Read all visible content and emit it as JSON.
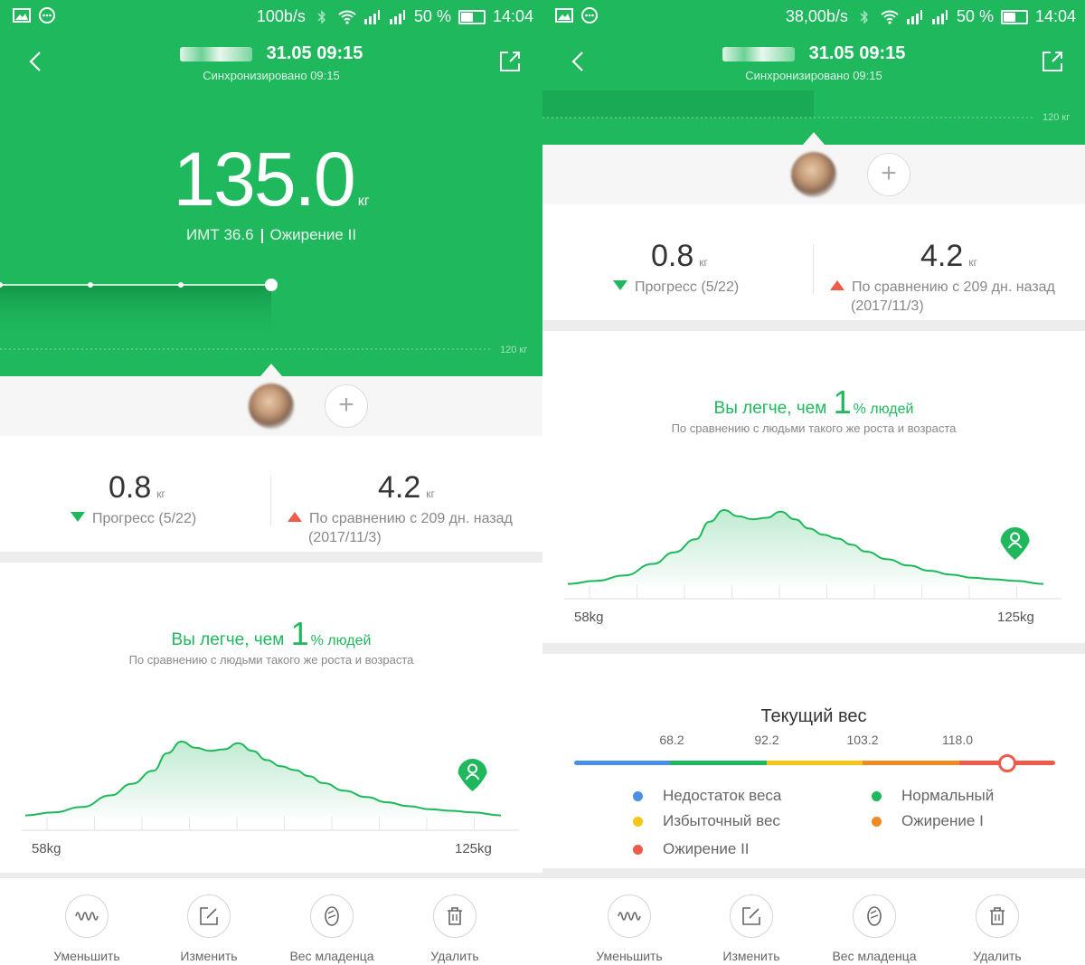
{
  "status_left": {
    "speed": "100b/s",
    "signal_pct": "50 %",
    "time": "14:04"
  },
  "status_right": {
    "speed": "38,00b/s",
    "signal_pct": "50 %",
    "time": "14:04"
  },
  "header": {
    "datetime": "31.05 09:15",
    "synced": "Синхронизировано 09:15"
  },
  "hero": {
    "weight": "135.0",
    "unit": "кг",
    "bmi": "ИМТ 36.6",
    "category": "Ожирение II",
    "ref_line_label": "120 кг"
  },
  "stats": {
    "progress_value": "0.8",
    "progress_unit": "кг",
    "progress_label": "Прогресс (5/22)",
    "compare_value": "4.2",
    "compare_unit": "кг",
    "compare_label_1": "По сравнению с 209 дн. назад",
    "compare_label_2": "(2017/11/3)"
  },
  "distribution": {
    "title_before": "Вы легче, чем",
    "percent": "1",
    "title_after": "% людей",
    "subtitle": "По сравнению с людьми такого же роста и возраста",
    "axis_min": "58kg",
    "axis_max": "125kg"
  },
  "chart_data": {
    "type": "area",
    "title": "Вы легче, чем 1 % людей",
    "xlabel": "",
    "ylabel": "",
    "x_range": [
      58,
      125
    ],
    "x": [
      58,
      62,
      66,
      70,
      73,
      76,
      78,
      80,
      82,
      84,
      86,
      88,
      90,
      92,
      94,
      96,
      98,
      100,
      103,
      106,
      109,
      112,
      115,
      118,
      121,
      125
    ],
    "series": [
      {
        "values": [
          4,
          8,
          15,
          30,
          45,
          62,
          85,
          100,
          92,
          88,
          90,
          98,
          88,
          76,
          68,
          63,
          55,
          46,
          36,
          28,
          21,
          16,
          12,
          10,
          8,
          4
        ]
      }
    ],
    "marker_x": 121,
    "grid": false
  },
  "current_weight": {
    "title": "Текущий вес",
    "thresholds": [
      "68.2",
      "92.2",
      "103.2",
      "118.0"
    ],
    "marker_position": 0.9,
    "segments_colors": [
      "#4a90e2",
      "#1fb85c",
      "#f5c518",
      "#f08a24",
      "#ef5b4b"
    ],
    "legend": [
      {
        "label": "Недостаток веса",
        "color": "#4a90e2"
      },
      {
        "label": "Нормальный",
        "color": "#1fb85c"
      },
      {
        "label": "Избыточный вес",
        "color": "#f5c518"
      },
      {
        "label": "Ожирение I",
        "color": "#f08a24"
      },
      {
        "label": "Ожирение II",
        "color": "#ef5b4b"
      }
    ]
  },
  "actions": [
    {
      "label": "Уменьшить",
      "icon": "wave-icon"
    },
    {
      "label": "Изменить",
      "icon": "edit-icon"
    },
    {
      "label": "Вес младенца",
      "icon": "baby-icon"
    },
    {
      "label": "Удалить",
      "icon": "trash-icon"
    }
  ],
  "colors": {
    "accent": "#1fb85c",
    "up": "#ef5b4b"
  }
}
